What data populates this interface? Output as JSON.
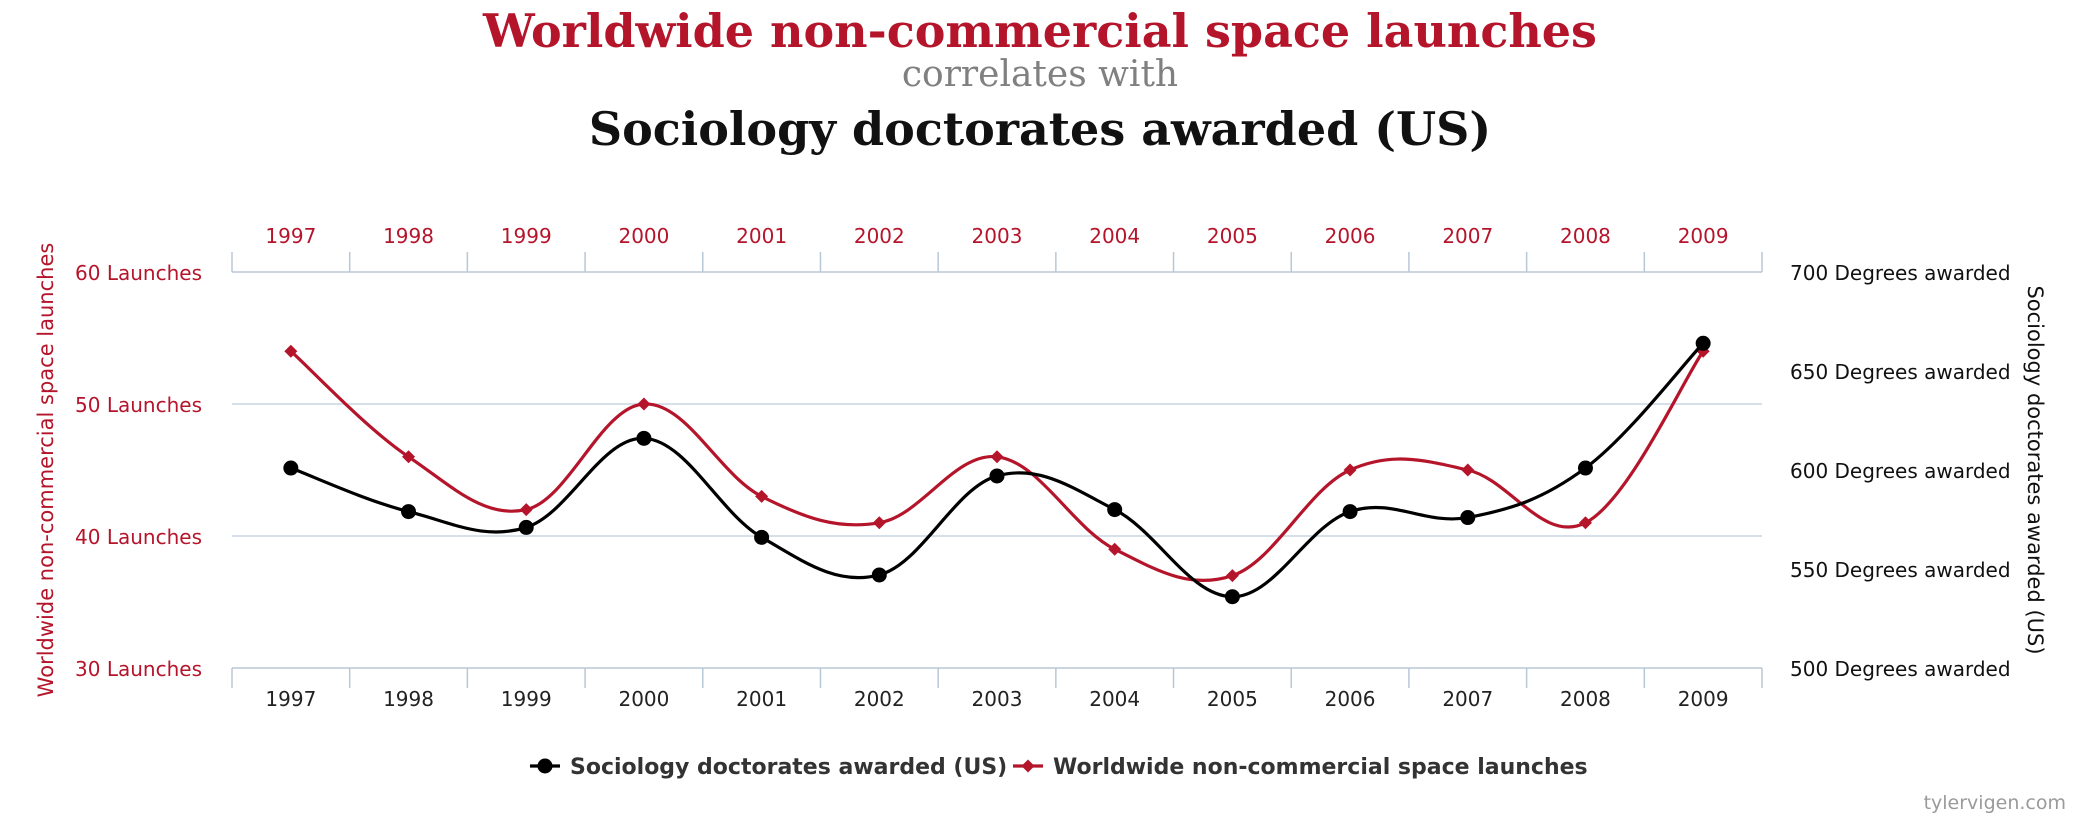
{
  "titles": {
    "main": "Worldwide non-commercial space launches",
    "connector": "correlates with",
    "secondary": "Sociology doctorates awarded (US)"
  },
  "credit": "tylervigen.com",
  "colors": {
    "launches": "#b5152b",
    "doctorates": "#000000",
    "grid": "#c9d6e3",
    "axis": "#b8c7d6"
  },
  "chart_data": {
    "type": "line",
    "categories": [
      "1997",
      "1998",
      "1999",
      "2000",
      "2001",
      "2002",
      "2003",
      "2004",
      "2005",
      "2006",
      "2007",
      "2008",
      "2009"
    ],
    "left_axis": {
      "label": "Worldwide non-commercial space launches",
      "ticks": [
        "60 Launches",
        "50 Launches",
        "40 Launches",
        "30 Launches"
      ],
      "tick_values": [
        60,
        50,
        40,
        30
      ],
      "ylim": [
        30,
        60
      ]
    },
    "right_axis": {
      "label": "Sociology doctorates awarded (US)",
      "ticks": [
        "700 Degrees awarded",
        "650 Degrees awarded",
        "600 Degrees awarded",
        "550 Degrees awarded",
        "500 Degrees awarded"
      ],
      "tick_values": [
        700,
        650,
        600,
        550,
        500
      ],
      "ylim": [
        500,
        700
      ]
    },
    "series": [
      {
        "name": "Sociology doctorates awarded (US)",
        "axis": "right",
        "marker": "circle",
        "values": [
          601,
          579,
          571,
          616,
          566,
          547,
          597,
          580,
          536,
          579,
          576,
          601,
          664
        ]
      },
      {
        "name": "Worldwide non-commercial space launches",
        "axis": "left",
        "marker": "diamond",
        "values": [
          54,
          46,
          42,
          50,
          43,
          41,
          46,
          39,
          37,
          45,
          45,
          41,
          54
        ]
      }
    ],
    "legend_position": "bottom-center",
    "grid": true
  }
}
